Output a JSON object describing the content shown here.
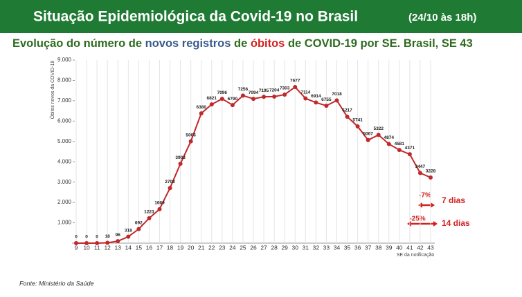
{
  "chart_data": {
    "type": "line",
    "title": "Situação Epidemiológica da Covid-19 no Brasil",
    "title_note": "(24/10 às 18h)",
    "subtitle_parts": [
      {
        "text": "Evolução do número de ",
        "color": "#2e6b1f"
      },
      {
        "text": "novos registros",
        "color": "#3a5a8c"
      },
      {
        "text": " de ",
        "color": "#2e6b1f"
      },
      {
        "text": "óbitos",
        "color": "#d42020"
      },
      {
        "text": " de COVID-19 por SE. Brasil, SE 43",
        "color": "#2e6b1f"
      }
    ],
    "y_label": "Óbitos novos da COVID-19",
    "x_label": "SE da notificação",
    "categories": [
      "9",
      "10",
      "11",
      "12",
      "13",
      "14",
      "15",
      "16",
      "17",
      "18",
      "19",
      "20",
      "21",
      "22",
      "23",
      "24",
      "25",
      "26",
      "27",
      "28",
      "29",
      "30",
      "31",
      "32",
      "33",
      "34",
      "35",
      "36",
      "37",
      "38",
      "39",
      "40",
      "41",
      "42",
      "43"
    ],
    "series": [
      {
        "name": "Óbitos",
        "color": "#c0282a",
        "values": [
          0,
          0,
          0,
          18,
          96,
          318,
          692,
          1223,
          1669,
          2708,
          3903,
          5006,
          6380,
          6821,
          7096,
          6790,
          7256,
          7094,
          7195,
          7204,
          7303,
          7677,
          7114,
          6914,
          6755,
          7018,
          6217,
          5741,
          5067,
          5322,
          4874,
          4581,
          4371,
          3447,
          3228
        ]
      }
    ],
    "ylim": [
      0,
      9000
    ],
    "yticks": [
      {
        "value": 1000,
        "label": "1.000"
      },
      {
        "value": 2000,
        "label": "2.000"
      },
      {
        "value": 3000,
        "label": "3.000"
      },
      {
        "value": 4000,
        "label": "4.000"
      },
      {
        "value": 5000,
        "label": "5.000"
      },
      {
        "value": 6000,
        "label": "6.000"
      },
      {
        "value": 7000,
        "label": "7.000"
      },
      {
        "value": 8000,
        "label": "8.000"
      },
      {
        "value": 9000,
        "label": "9.000"
      }
    ],
    "grid": true,
    "annotations": [
      {
        "change": "-7%",
        "period": "7 dias"
      },
      {
        "change": "-25%",
        "period": "14 dias"
      }
    ],
    "source": "Fonte: Ministério da Saúde"
  }
}
